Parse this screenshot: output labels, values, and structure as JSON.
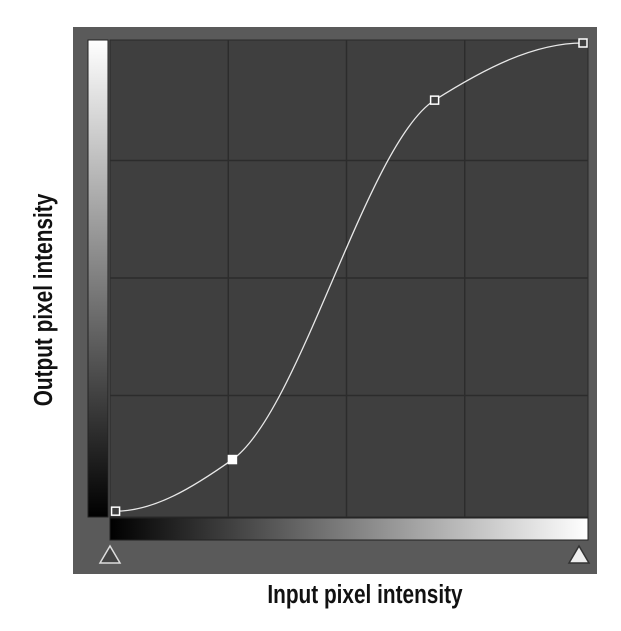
{
  "chart_data": {
    "type": "line",
    "xlabel": "Input pixel intensity",
    "ylabel": "Output pixel intensity",
    "x": [
      3,
      66,
      175,
      255
    ],
    "series": [
      {
        "color": "#e8e8e8",
        "values": [
          1,
          29,
          224,
          255
        ]
      }
    ],
    "xlim": [
      0,
      255
    ],
    "ylim": [
      0,
      255
    ],
    "grid": true,
    "grid_divisions": 4
  }
}
